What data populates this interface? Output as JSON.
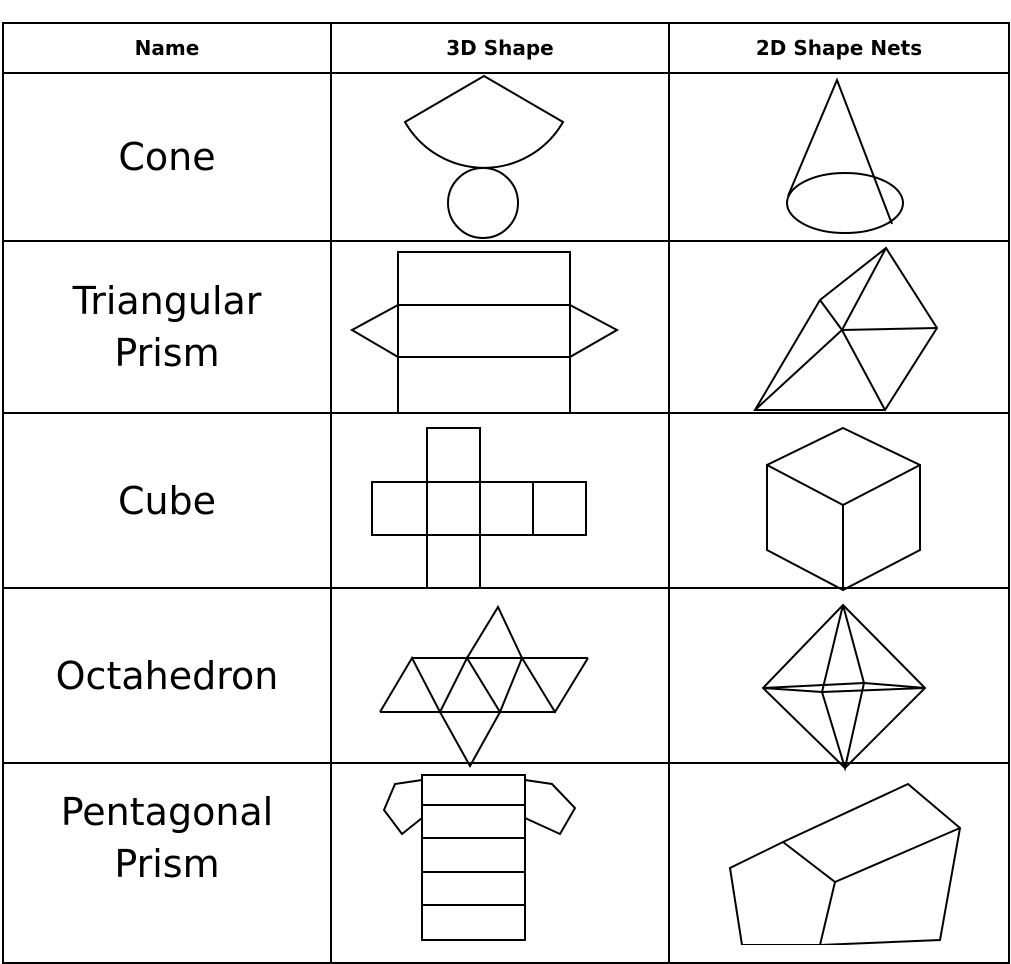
{
  "table": {
    "headers": [
      "Name",
      "3D Shape",
      "2D Shape Nets"
    ],
    "rows": [
      "Cone",
      "Triangular Prism",
      "Cube",
      "Octahedron",
      "Pentagonal Prism"
    ]
  }
}
